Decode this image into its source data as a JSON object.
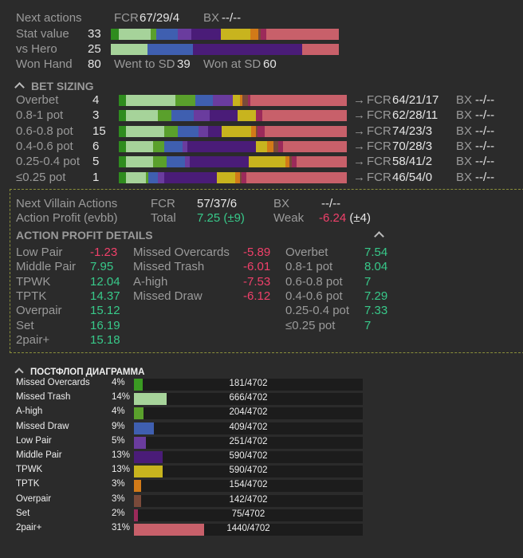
{
  "colors": {
    "bg": "#2b2b2b",
    "seg": [
      "#2f8c1e",
      "#a6d39a",
      "#5aa02c",
      "#3f5fb0",
      "#6a3c9e",
      "#4a1c78",
      "#c8b41e",
      "#d27a18",
      "#7a4a3a",
      "#9b2a5a",
      "#c8606a"
    ]
  },
  "header": {
    "next_actions": "Next actions",
    "fcr_label": "FCR",
    "fcr_value": "67/29/4",
    "bx_label": "BX",
    "bx_value": "--/--",
    "stat_value_label": "Stat value",
    "stat_value": "33",
    "vs_hero_label": "vs Hero",
    "vs_hero": "25",
    "won_hand_label": "Won Hand",
    "won_hand": "80",
    "went_sd_label": "Went to SD",
    "went_sd": "39",
    "won_sd_label": "Won at SD",
    "won_sd": "60",
    "stat_bar": [
      3,
      12,
      2,
      8,
      5,
      11,
      11,
      3,
      1,
      2,
      27
    ],
    "hero_bar": [
      0,
      17,
      0,
      21,
      0,
      50,
      0,
      0,
      0,
      0,
      17
    ]
  },
  "bet_sizing": {
    "title": "BET SIZING",
    "rows": [
      {
        "label": "Overbet",
        "value": "4",
        "fcr": "64/21/17",
        "bx": "--/--",
        "segs": [
          3,
          20,
          8,
          7,
          8,
          0,
          3,
          1,
          2,
          1,
          39
        ]
      },
      {
        "label": "0.8-1 pot",
        "value": "3",
        "fcr": "62/28/11",
        "bx": "--/--",
        "segs": [
          3,
          14,
          6,
          10,
          7,
          12,
          8,
          0,
          0,
          3,
          37
        ]
      },
      {
        "label": "0.6-0.8 pot",
        "value": "15",
        "fcr": "74/23/3",
        "bx": "--/--",
        "segs": [
          3,
          17,
          6,
          9,
          4,
          6,
          13,
          2,
          1,
          3,
          36
        ]
      },
      {
        "label": "0.4-0.6 pot",
        "value": "6",
        "fcr": "70/28/3",
        "bx": "--/--",
        "segs": [
          3,
          12,
          5,
          8,
          2,
          30,
          5,
          3,
          2,
          2,
          28
        ]
      },
      {
        "label": "0.25-0.4 pot",
        "value": "5",
        "fcr": "58/41/2",
        "bx": "--/--",
        "segs": [
          3,
          12,
          6,
          8,
          2,
          26,
          16,
          2,
          1,
          2,
          22
        ]
      },
      {
        "label": "≤0.25 pot",
        "value": "1",
        "fcr": "46/54/0",
        "bx": "--/--",
        "segs": [
          3,
          9,
          1,
          4,
          3,
          23,
          8,
          2,
          1,
          2,
          44
        ]
      }
    ]
  },
  "villain": {
    "next_label": "Next Villain Actions",
    "fcr_label": "FCR",
    "fcr_value": "57/37/6",
    "bx_label": "BX",
    "bx_value": "--/--",
    "profit_label": "Action Profit (evbb)",
    "total_label": "Total",
    "total_value": "7.25 (±9)",
    "weak_label": "Weak",
    "weak_value": "-6.24 (±4)",
    "details_title": "ACTION PROFIT DETAILS",
    "col1": [
      {
        "label": "Low Pair",
        "value": "-1.23",
        "neg": true
      },
      {
        "label": "Middle Pair",
        "value": "7.95",
        "neg": false
      },
      {
        "label": "TPWK",
        "value": "12.04",
        "neg": false
      },
      {
        "label": "TPTK",
        "value": "14.37",
        "neg": false
      },
      {
        "label": "Overpair",
        "value": "15.12",
        "neg": false
      },
      {
        "label": "Set",
        "value": "16.19",
        "neg": false
      },
      {
        "label": "2pair+",
        "value": "15.18",
        "neg": false
      }
    ],
    "col2": [
      {
        "label": "Missed Overcards",
        "value": "-5.89",
        "neg": true
      },
      {
        "label": "Missed Trash",
        "value": "-6.01",
        "neg": true
      },
      {
        "label": "A-high",
        "value": "-7.53",
        "neg": true
      },
      {
        "label": "Missed Draw",
        "value": "-6.12",
        "neg": true
      }
    ],
    "col3": [
      {
        "label": "Overbet",
        "value": "7.54",
        "neg": false
      },
      {
        "label": "0.8-1 pot",
        "value": "8.04",
        "neg": false
      },
      {
        "label": "0.6-0.8 pot",
        "value": "7",
        "neg": false
      },
      {
        "label": "0.4-0.6 pot",
        "value": "7.29",
        "neg": false
      },
      {
        "label": "0.25-0.4 pot",
        "value": "7.33",
        "neg": false
      },
      {
        "label": "≤0.25 pot",
        "value": "7",
        "neg": false
      }
    ]
  },
  "postflop": {
    "title": "ПОСТФЛОП ДИАГРАММА",
    "rows": [
      {
        "label": "Missed Overcards",
        "pct": "4%",
        "count": "181/4702",
        "frac": 0.038,
        "color": "#3a9a22"
      },
      {
        "label": "Missed Trash",
        "pct": "14%",
        "count": "666/4702",
        "frac": 0.142,
        "color": "#a6d39a"
      },
      {
        "label": "A-high",
        "pct": "4%",
        "count": "204/4702",
        "frac": 0.043,
        "color": "#5aa02c"
      },
      {
        "label": "Missed Draw",
        "pct": "9%",
        "count": "409/4702",
        "frac": 0.087,
        "color": "#3f5fb0"
      },
      {
        "label": "Low Pair",
        "pct": "5%",
        "count": "251/4702",
        "frac": 0.053,
        "color": "#6a3c9e"
      },
      {
        "label": "Middle Pair",
        "pct": "13%",
        "count": "590/4702",
        "frac": 0.125,
        "color": "#4a1c78"
      },
      {
        "label": "TPWK",
        "pct": "13%",
        "count": "590/4702",
        "frac": 0.125,
        "color": "#c8b41e"
      },
      {
        "label": "TPTK",
        "pct": "3%",
        "count": "154/4702",
        "frac": 0.033,
        "color": "#d27a18"
      },
      {
        "label": "Overpair",
        "pct": "3%",
        "count": "142/4702",
        "frac": 0.03,
        "color": "#7a4a3a"
      },
      {
        "label": "Set",
        "pct": "2%",
        "count": "75/4702",
        "frac": 0.016,
        "color": "#9b2a5a"
      },
      {
        "label": "2pair+",
        "pct": "31%",
        "count": "1440/4702",
        "frac": 0.306,
        "color": "#c8606a"
      }
    ]
  }
}
